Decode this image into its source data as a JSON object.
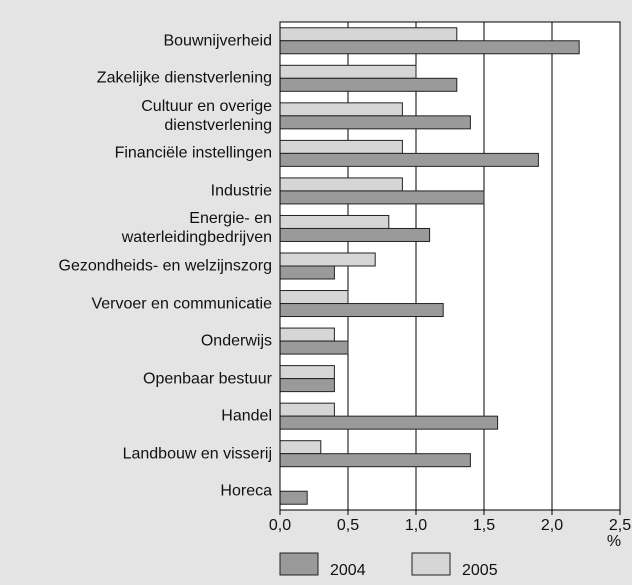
{
  "chart_data": {
    "type": "bar",
    "orientation": "horizontal",
    "categories": [
      "Bouwnijverheid",
      "Zakelijke dienstverlening",
      "Cultuur en overige\ndienstverlening",
      "Financiële instellingen",
      "Industrie",
      "Energie- en\nwaterleidingbedrijven",
      "Gezondheids- en welzijnszorg",
      "Vervoer en communicatie",
      "Onderwijs",
      "Openbaar bestuur",
      "Handel",
      "Landbouw en visserij",
      "Horeca"
    ],
    "series": [
      {
        "name": "2004",
        "color": "#9a9a9a",
        "values": [
          2.2,
          1.3,
          1.4,
          1.9,
          1.5,
          1.1,
          0.4,
          1.2,
          0.5,
          0.4,
          1.6,
          1.4,
          0.2
        ]
      },
      {
        "name": "2005",
        "color": "#d6d6d6",
        "values": [
          1.3,
          1.0,
          0.9,
          0.9,
          0.9,
          0.8,
          0.7,
          0.5,
          0.4,
          0.4,
          0.4,
          0.3,
          null
        ]
      }
    ],
    "xlim": [
      0,
      2.5
    ],
    "xticks": [
      {
        "value": 0,
        "label": "0,0"
      },
      {
        "value": 0.5,
        "label": "0,5"
      },
      {
        "value": 1,
        "label": "1,0"
      },
      {
        "value": 1.5,
        "label": "1,5"
      },
      {
        "value": 2,
        "label": "2,0"
      },
      {
        "value": 2.5,
        "label": "2,5"
      }
    ],
    "x_unit": "%",
    "grid": true
  }
}
